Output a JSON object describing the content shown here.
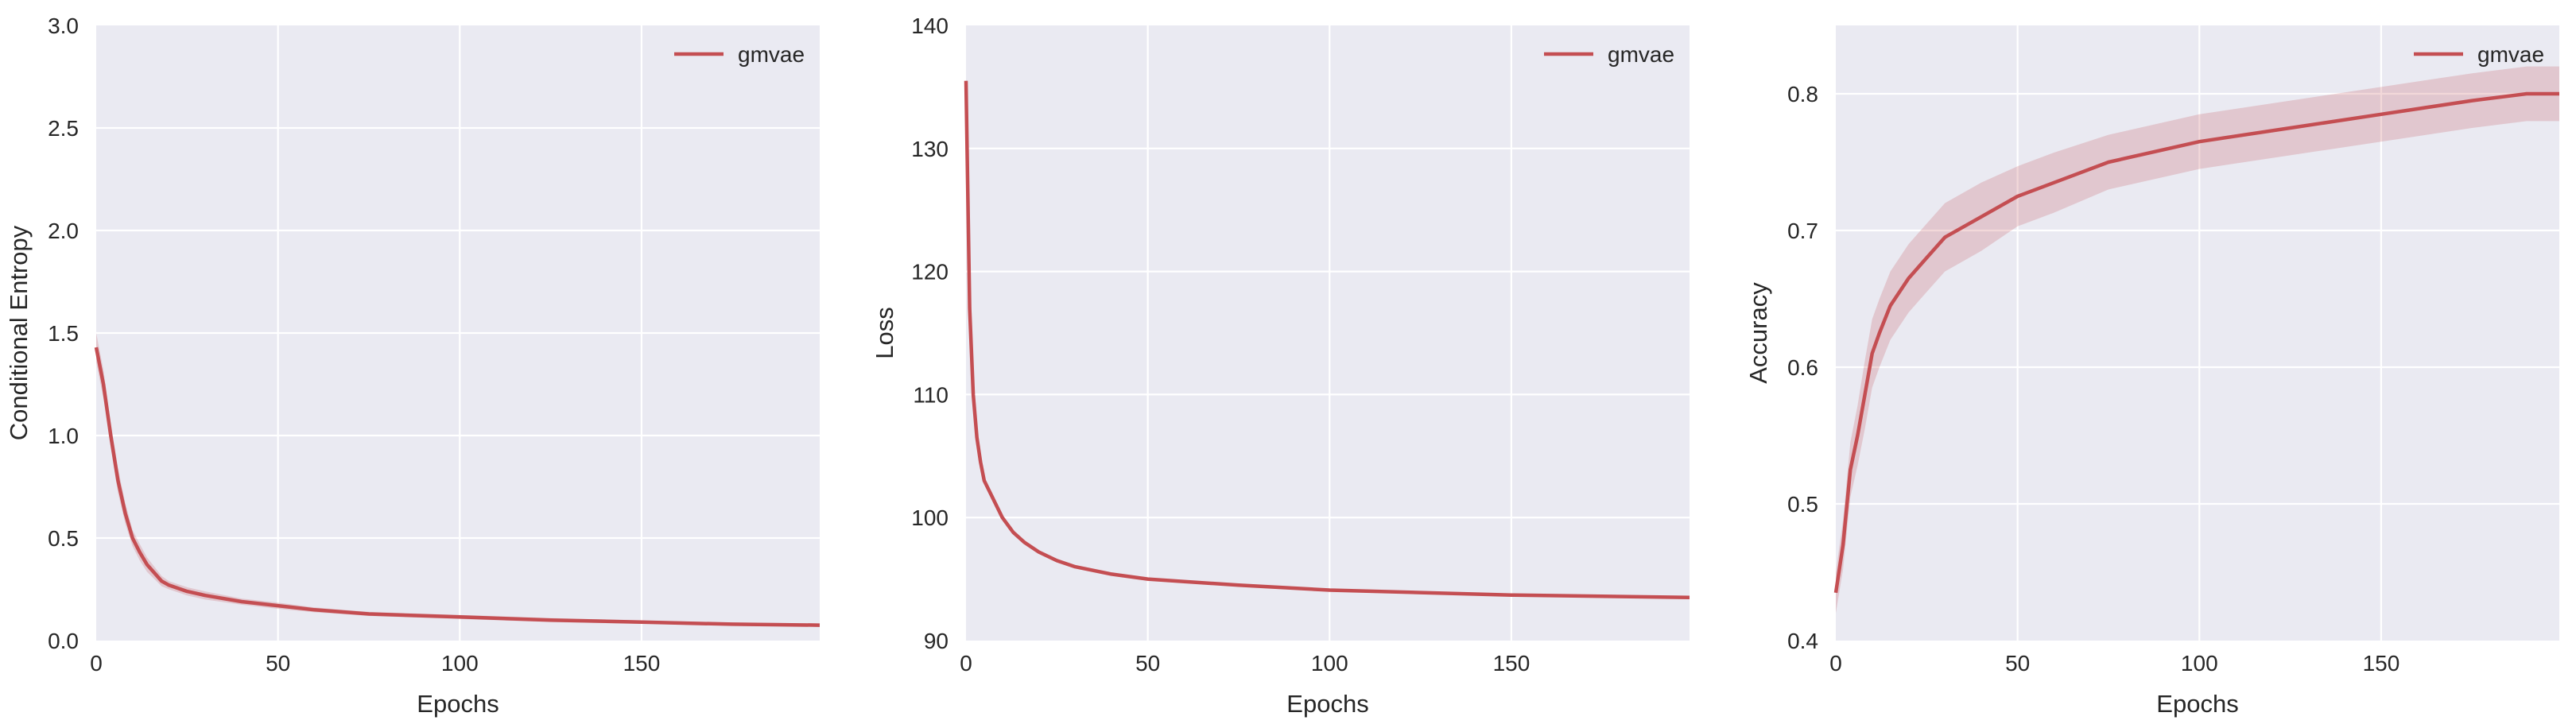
{
  "chart_data": [
    {
      "type": "line",
      "xlabel": "Epochs",
      "ylabel": "Conditional Entropy",
      "xlim": [
        0,
        199
      ],
      "ylim": [
        0,
        3.0
      ],
      "xticks": [
        0,
        50,
        100,
        150
      ],
      "xtick_labels": [
        "0",
        "50",
        "100",
        "150"
      ],
      "yticks": [
        0,
        0.5,
        1.0,
        1.5,
        2.0,
        2.5,
        3.0
      ],
      "ytick_labels": [
        "0.0",
        "0.5",
        "1.0",
        "1.5",
        "2.0",
        "2.5",
        "3.0"
      ],
      "grid": true,
      "legend_position": "top-right",
      "series": [
        {
          "name": "gmvae",
          "color": "#c44e52",
          "x": [
            0,
            2,
            4,
            6,
            8,
            10,
            12,
            14,
            16,
            18,
            20,
            25,
            30,
            40,
            50,
            60,
            75,
            100,
            125,
            150,
            175,
            199
          ],
          "y": [
            1.43,
            1.25,
            1.0,
            0.78,
            0.62,
            0.5,
            0.43,
            0.37,
            0.33,
            0.29,
            0.27,
            0.24,
            0.22,
            0.19,
            0.17,
            0.15,
            0.13,
            0.115,
            0.1,
            0.09,
            0.08,
            0.075
          ],
          "band": [
            0.07,
            0.07,
            0.06,
            0.06,
            0.05,
            0.04,
            0.04,
            0.035,
            0.03,
            0.025,
            0.02,
            0.02,
            0.02,
            0.015,
            0.015,
            0.012,
            0.01,
            0.01,
            0.01,
            0.008,
            0.008,
            0.008
          ]
        }
      ]
    },
    {
      "type": "line",
      "xlabel": "Epochs",
      "ylabel": "Loss",
      "xlim": [
        0,
        199
      ],
      "ylim": [
        90,
        140
      ],
      "xticks": [
        0,
        50,
        100,
        150
      ],
      "xtick_labels": [
        "0",
        "50",
        "100",
        "150"
      ],
      "yticks": [
        90,
        100,
        110,
        120,
        130,
        140
      ],
      "ytick_labels": [
        "90",
        "100",
        "110",
        "120",
        "130",
        "140"
      ],
      "grid": true,
      "legend_position": "top-right",
      "series": [
        {
          "name": "gmvae",
          "color": "#c44e52",
          "x": [
            0,
            1,
            2,
            3,
            4,
            5,
            7,
            10,
            13,
            16,
            20,
            25,
            30,
            40,
            50,
            60,
            75,
            100,
            125,
            150,
            175,
            199
          ],
          "y": [
            135.5,
            117,
            110,
            106.5,
            104.5,
            103,
            101.8,
            100,
            98.8,
            98,
            97.2,
            96.5,
            96,
            95.4,
            95,
            94.8,
            94.5,
            94.1,
            93.9,
            93.7,
            93.6,
            93.5
          ],
          "band": [
            0.3,
            0.3,
            0.3,
            0.2,
            0.2,
            0.2,
            0.2,
            0.2,
            0.15,
            0.15,
            0.15,
            0.15,
            0.1,
            0.1,
            0.1,
            0.1,
            0.1,
            0.1,
            0.1,
            0.1,
            0.1,
            0.1
          ]
        }
      ]
    },
    {
      "type": "line",
      "xlabel": "Epochs",
      "ylabel": "Accuracy",
      "xlim": [
        0,
        199
      ],
      "ylim": [
        0.4,
        0.85
      ],
      "xticks": [
        0,
        50,
        100,
        150
      ],
      "xtick_labels": [
        "0",
        "50",
        "100",
        "150"
      ],
      "yticks": [
        0.4,
        0.5,
        0.6,
        0.7,
        0.8
      ],
      "ytick_labels": [
        "0.4",
        "0.5",
        "0.6",
        "0.7",
        "0.8"
      ],
      "grid": true,
      "legend_position": "top-right",
      "series": [
        {
          "name": "gmvae",
          "color": "#c44e52",
          "x": [
            0,
            2,
            4,
            6,
            8,
            10,
            12,
            15,
            20,
            25,
            30,
            40,
            50,
            60,
            75,
            100,
            125,
            150,
            175,
            190,
            199
          ],
          "y": [
            0.435,
            0.47,
            0.525,
            0.55,
            0.58,
            0.61,
            0.625,
            0.645,
            0.665,
            0.68,
            0.695,
            0.71,
            0.725,
            0.735,
            0.75,
            0.765,
            0.775,
            0.785,
            0.795,
            0.8,
            0.8
          ],
          "band": [
            0.015,
            0.018,
            0.02,
            0.022,
            0.025,
            0.025,
            0.025,
            0.025,
            0.025,
            0.025,
            0.025,
            0.025,
            0.022,
            0.022,
            0.02,
            0.02,
            0.02,
            0.02,
            0.02,
            0.02,
            0.02
          ]
        }
      ]
    }
  ]
}
